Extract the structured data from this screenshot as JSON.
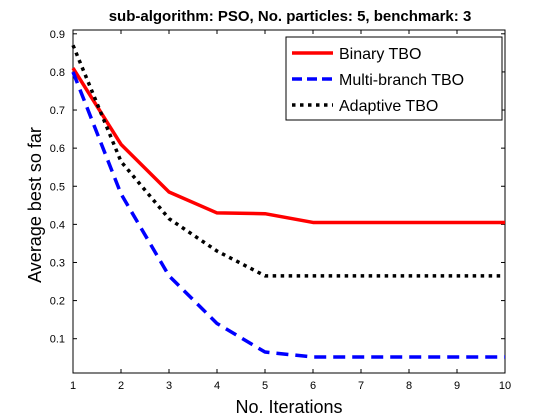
{
  "chart_data": {
    "type": "line",
    "title": "sub-algorithm: PSO, No. particles: 5, benchmark: 3",
    "xlabel": "No. Iterations",
    "ylabel": "Average best so far",
    "xlim": [
      1,
      10
    ],
    "ylim": [
      0.01,
      0.91
    ],
    "xticks": [
      1,
      2,
      3,
      4,
      5,
      6,
      7,
      8,
      9,
      10
    ],
    "yticks": [
      0.1,
      0.2,
      0.3,
      0.4,
      0.5,
      0.6,
      0.7,
      0.8,
      0.9
    ],
    "grid": false,
    "legend_position": "top-right",
    "x": [
      1,
      2,
      3,
      4,
      5,
      6,
      7,
      8,
      9,
      10
    ],
    "series": [
      {
        "name": "Binary TBO",
        "color": "#ff0000",
        "style": "solid",
        "values": [
          0.81,
          0.61,
          0.485,
          0.43,
          0.428,
          0.405,
          0.405,
          0.405,
          0.405,
          0.405
        ]
      },
      {
        "name": "Multi-branch TBO",
        "color": "#0000ff",
        "style": "dashed",
        "values": [
          0.8,
          0.48,
          0.265,
          0.14,
          0.065,
          0.052,
          0.052,
          0.052,
          0.052,
          0.052
        ]
      },
      {
        "name": "Adaptive TBO",
        "color": "#000000",
        "style": "dotted",
        "values": [
          0.87,
          0.565,
          0.415,
          0.33,
          0.265,
          0.265,
          0.265,
          0.265,
          0.265,
          0.265
        ]
      }
    ]
  }
}
